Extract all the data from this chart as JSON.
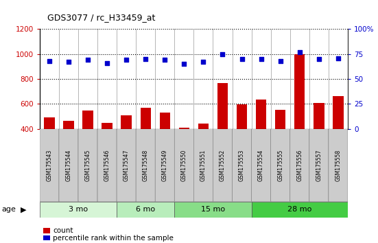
{
  "title": "GDS3077 / rc_H33459_at",
  "samples": [
    "GSM175543",
    "GSM175544",
    "GSM175545",
    "GSM175546",
    "GSM175547",
    "GSM175548",
    "GSM175549",
    "GSM175550",
    "GSM175551",
    "GSM175552",
    "GSM175553",
    "GSM175554",
    "GSM175555",
    "GSM175556",
    "GSM175557",
    "GSM175558"
  ],
  "bar_values": [
    490,
    465,
    545,
    445,
    510,
    570,
    530,
    410,
    440,
    765,
    595,
    635,
    550,
    1000,
    605,
    665
  ],
  "scatter_values": [
    68,
    67,
    69,
    66,
    69,
    70,
    69,
    65,
    67,
    75,
    70,
    70,
    68,
    77,
    70,
    71
  ],
  "bar_color": "#cc0000",
  "scatter_color": "#0000cc",
  "ylim_left": [
    400,
    1200
  ],
  "ylim_right": [
    0,
    100
  ],
  "yticks_left": [
    400,
    600,
    800,
    1000,
    1200
  ],
  "yticks_right": [
    0,
    25,
    50,
    75,
    100
  ],
  "groups": [
    {
      "label": "3 mo",
      "start": 0,
      "end": 4,
      "color": "#d6f5d6"
    },
    {
      "label": "6 mo",
      "start": 4,
      "end": 7,
      "color": "#b8edbb"
    },
    {
      "label": "15 mo",
      "start": 7,
      "end": 11,
      "color": "#88dd88"
    },
    {
      "label": "28 mo",
      "start": 11,
      "end": 16,
      "color": "#44cc44"
    }
  ],
  "age_label": "age",
  "legend_count": "count",
  "legend_percentile": "percentile rank within the sample",
  "grid_color": "#000000",
  "background_color": "#ffffff",
  "bar_width": 0.55,
  "tick_label_bg": "#cccccc"
}
